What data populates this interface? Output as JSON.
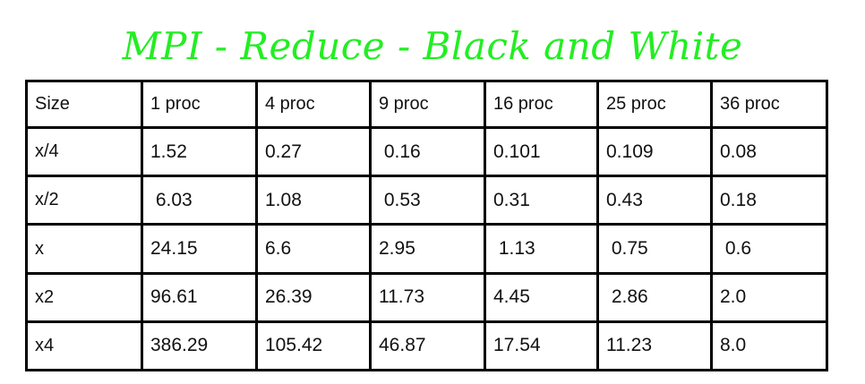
{
  "title": "MPI - Reduce - Black and White",
  "table": {
    "headers": [
      "Size",
      "1 proc",
      "4 proc",
      "9 proc",
      "16 proc",
      "25 proc",
      "36 proc"
    ],
    "rows": [
      {
        "label": "x/4",
        "cells": [
          "1.52",
          "0.27",
          " 0.16",
          "0.101",
          "0.109",
          "0.08"
        ]
      },
      {
        "label": "x/2",
        "cells": [
          " 6.03",
          "1.08",
          " 0.53",
          "0.31",
          "0.43",
          "0.18"
        ]
      },
      {
        "label": "x",
        "cells": [
          "24.15",
          "6.6",
          "2.95",
          " 1.13",
          " 0.75",
          " 0.6"
        ]
      },
      {
        "label": "x2",
        "cells": [
          "96.61",
          "26.39",
          "11.73",
          "4.45",
          " 2.86",
          "2.0"
        ]
      },
      {
        "label": "x4",
        "cells": [
          "386.29",
          "105.42",
          "46.87",
          "17.54",
          "11.23",
          "8.0"
        ]
      }
    ]
  }
}
